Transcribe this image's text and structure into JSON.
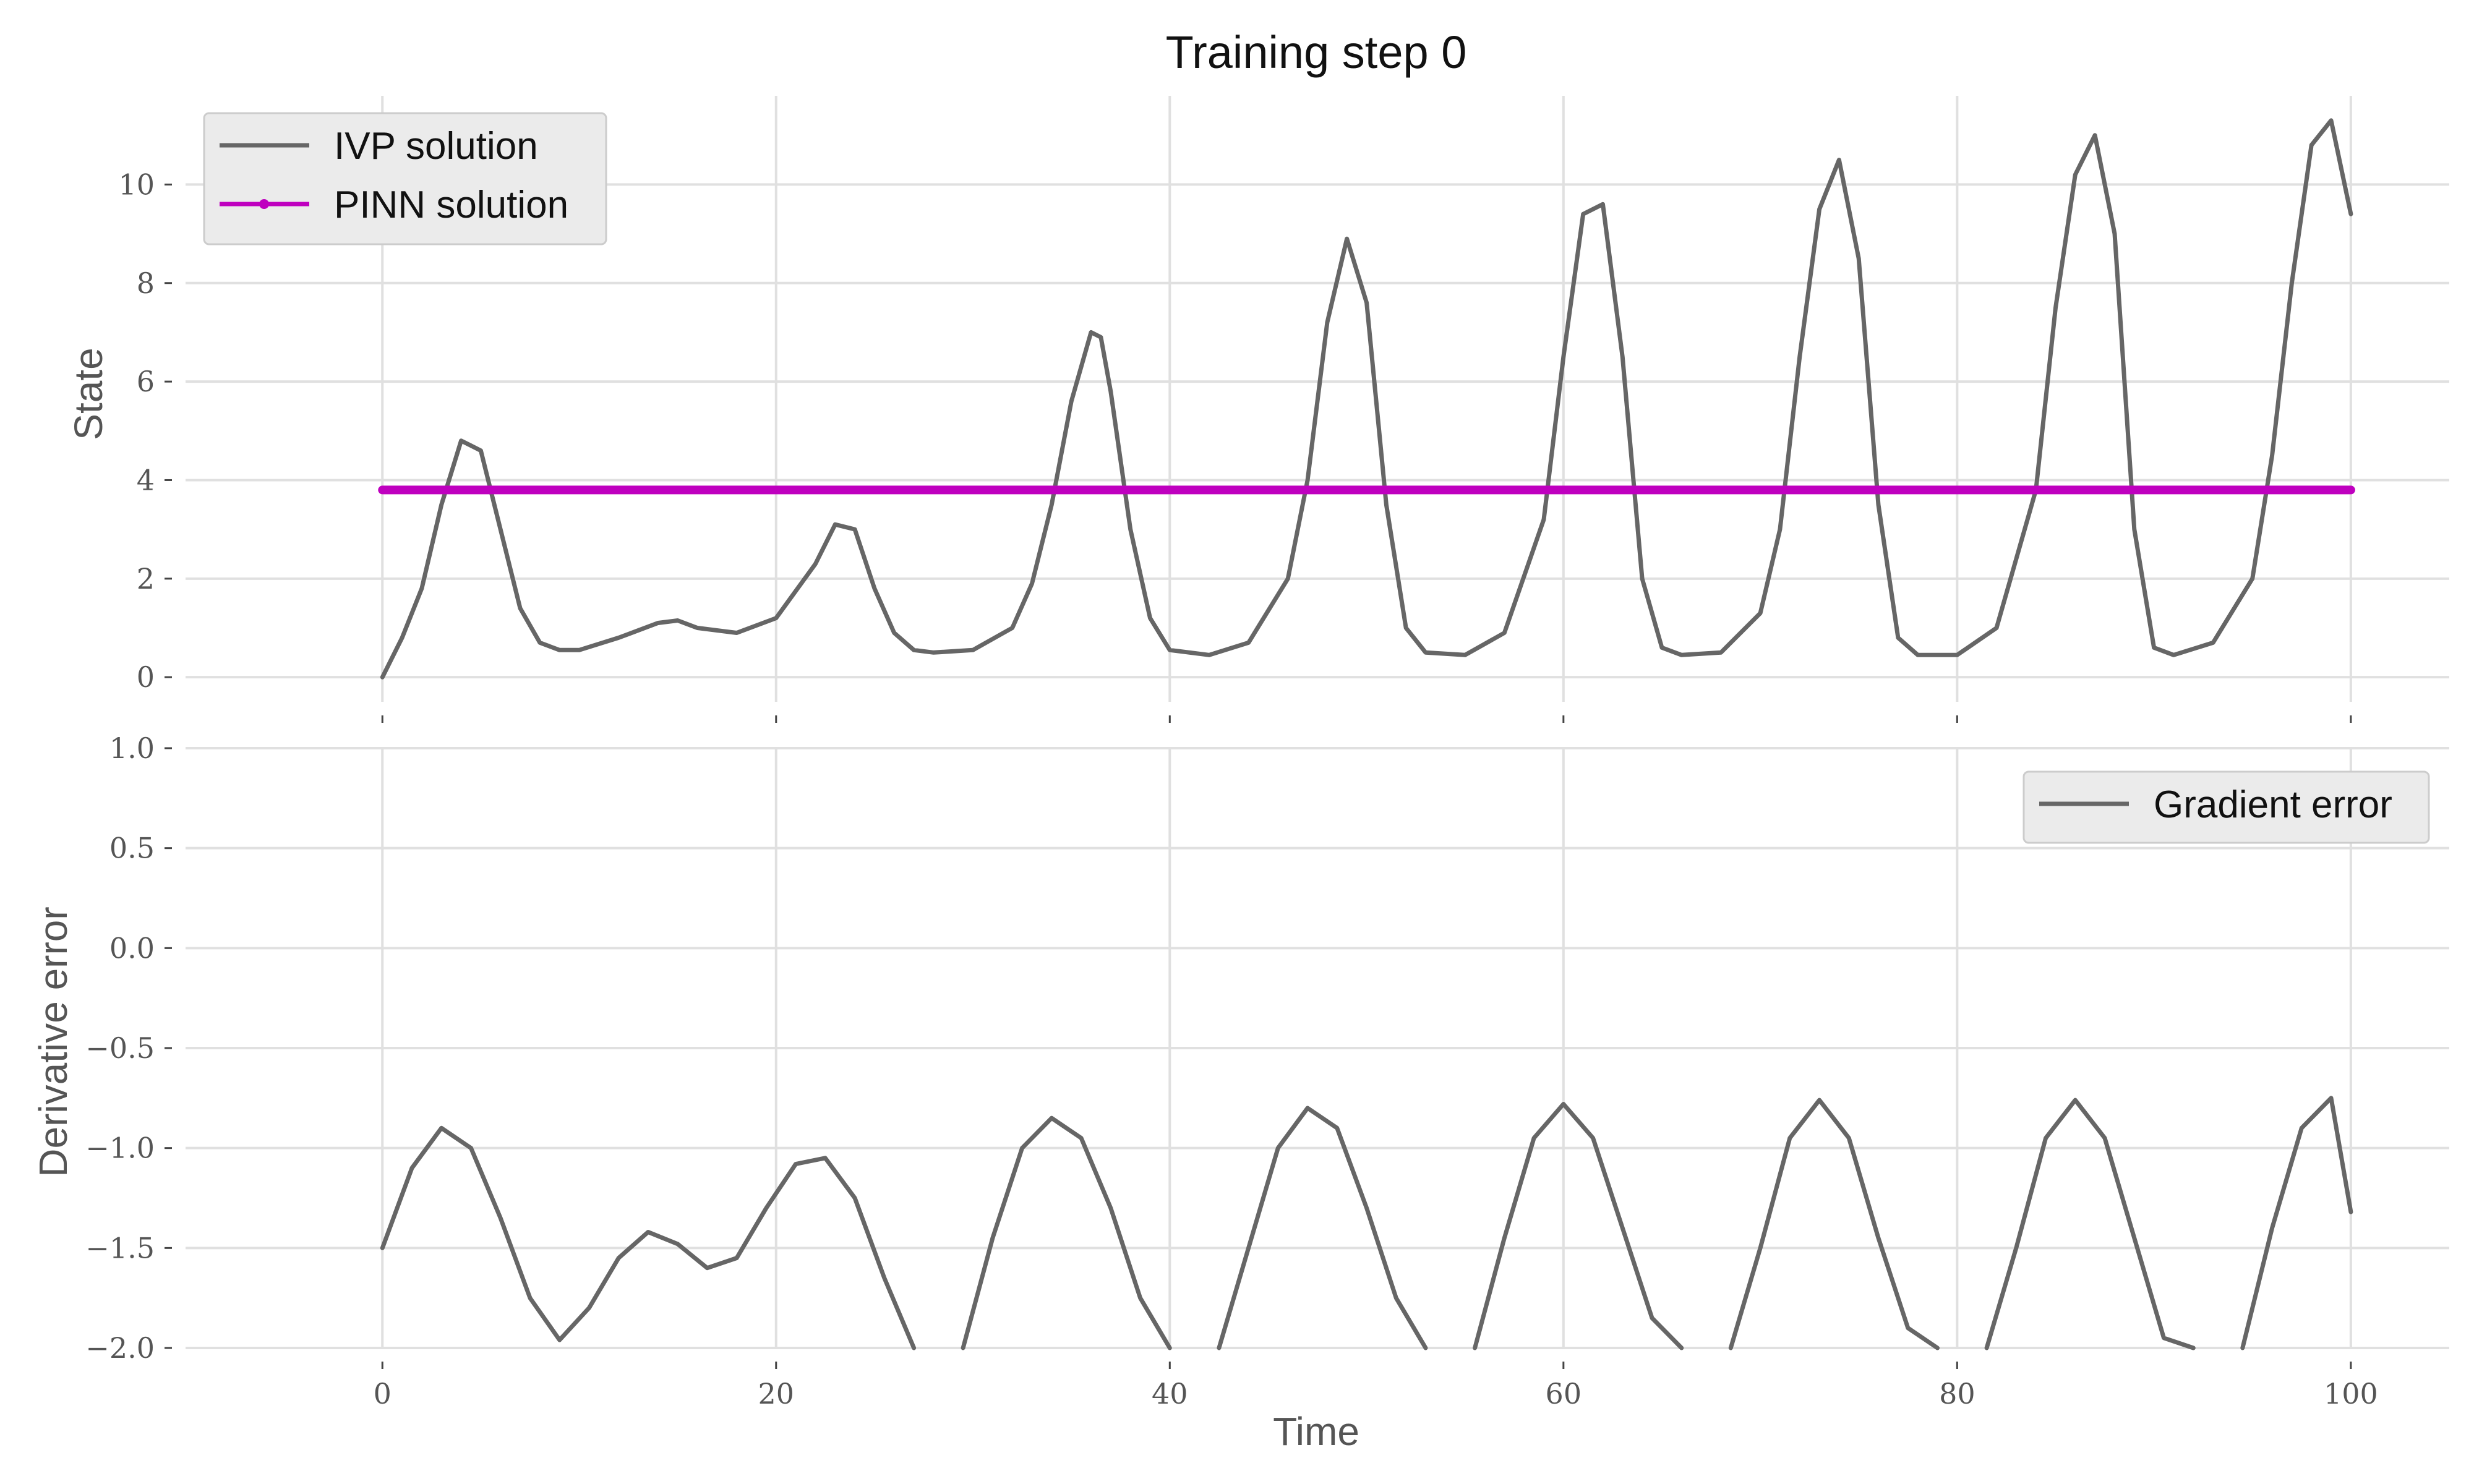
{
  "chart_data": {
    "title": "Training step 0",
    "xlabel": "Time",
    "xlim": [
      -10,
      105
    ],
    "xticks": [
      0,
      20,
      40,
      60,
      80,
      100
    ],
    "grid": true,
    "panels": [
      {
        "type": "line",
        "ylabel": "State",
        "ylim": [
          -0.5,
          11.8
        ],
        "yticks": [
          0,
          2,
          4,
          6,
          8,
          10
        ],
        "legend": {
          "placement": "upper-left"
        },
        "series": [
          {
            "name": "IVP solution",
            "color": "#666666",
            "x": [
              0,
              1,
              2,
              3,
              4,
              5,
              6,
              7,
              8,
              9,
              10,
              12,
              14,
              15,
              16,
              18,
              20,
              22,
              23,
              24,
              25,
              26,
              27,
              28,
              30,
              32,
              33,
              34,
              35,
              36,
              36.5,
              37,
              38,
              39,
              40,
              42,
              44,
              46,
              47,
              48,
              49,
              50,
              51,
              52,
              53,
              55,
              57,
              59,
              60,
              61,
              62,
              63,
              64,
              65,
              66,
              68,
              70,
              71,
              72,
              73,
              74,
              75,
              76,
              77,
              78,
              80,
              82,
              84,
              85,
              86,
              87,
              88,
              89,
              90,
              91,
              93,
              95,
              96,
              97,
              98,
              99,
              100
            ],
            "y": [
              0,
              0.8,
              1.8,
              3.5,
              4.8,
              4.6,
              3.0,
              1.4,
              0.7,
              0.55,
              0.55,
              0.8,
              1.1,
              1.15,
              1.0,
              0.9,
              1.2,
              2.3,
              3.1,
              3.0,
              1.8,
              0.9,
              0.55,
              0.5,
              0.55,
              1.0,
              1.9,
              3.5,
              5.6,
              7.0,
              6.9,
              5.8,
              3.0,
              1.2,
              0.55,
              0.45,
              0.7,
              2.0,
              4.0,
              7.2,
              8.9,
              7.6,
              3.5,
              1.0,
              0.5,
              0.45,
              0.9,
              3.2,
              6.5,
              9.4,
              9.6,
              6.5,
              2.0,
              0.6,
              0.45,
              0.5,
              1.3,
              3.0,
              6.5,
              9.5,
              10.5,
              8.5,
              3.5,
              0.8,
              0.45,
              0.45,
              1.0,
              3.8,
              7.5,
              10.2,
              11.0,
              9.0,
              3.0,
              0.6,
              0.45,
              0.7,
              2.0,
              4.5,
              8.0,
              10.8,
              11.3,
              9.4
            ]
          },
          {
            "name": "PINN solution",
            "color": "#bf00bf",
            "x": [
              0,
              100
            ],
            "y": [
              3.8,
              3.8
            ]
          }
        ]
      },
      {
        "type": "line",
        "ylabel": "Derivative error",
        "ylim": [
          -2.0,
          1.0
        ],
        "yticks": [
          -2.0,
          -1.5,
          -1.0,
          -0.5,
          0.0,
          0.5,
          1.0
        ],
        "legend": {
          "placement": "upper-right"
        },
        "series": [
          {
            "name": "Gradient error",
            "color": "#666666",
            "x": [
              0,
              1.5,
              3,
              4.5,
              6,
              7.5,
              9,
              10.5,
              12,
              13.5,
              15,
              16.5,
              18,
              19.5,
              21,
              22.5,
              24,
              25.5,
              27,
              28.5,
              29.5,
              31,
              32.5,
              34,
              35.5,
              37,
              38.5,
              40,
              41.5,
              42.5,
              44,
              45.5,
              47,
              48.5,
              50,
              51.5,
              53,
              54.5,
              55.5,
              57,
              58.5,
              60,
              61.5,
              63,
              64.5,
              66,
              67.5,
              68.5,
              70,
              71.5,
              73,
              74.5,
              76,
              77.5,
              79,
              80.5,
              81.5,
              83,
              84.5,
              86,
              87.5,
              89,
              90.5,
              92,
              93.5,
              94.5,
              96,
              97.5,
              99,
              100
            ],
            "y": [
              -1.5,
              -1.1,
              -0.9,
              -1.0,
              -1.35,
              -1.75,
              -1.96,
              -1.8,
              -1.55,
              -1.42,
              -1.48,
              -1.6,
              -1.55,
              -1.3,
              -1.08,
              -1.05,
              -1.25,
              -1.65,
              -2.0,
              null,
              -2.0,
              -1.45,
              -1.0,
              -0.85,
              -0.95,
              -1.3,
              -1.75,
              -2.0,
              null,
              -2.0,
              -1.5,
              -1.0,
              -0.8,
              -0.9,
              -1.3,
              -1.75,
              -2.0,
              null,
              -2.0,
              -1.45,
              -0.95,
              -0.78,
              -0.95,
              -1.4,
              -1.85,
              -2.0,
              null,
              -2.0,
              -1.5,
              -0.95,
              -0.76,
              -0.95,
              -1.45,
              -1.9,
              -2.0,
              null,
              -2.0,
              -1.5,
              -0.95,
              -0.76,
              -0.95,
              -1.45,
              -1.95,
              -2.0,
              null,
              -2.0,
              -1.4,
              -0.9,
              -0.75,
              -1.32
            ]
          }
        ]
      }
    ]
  }
}
